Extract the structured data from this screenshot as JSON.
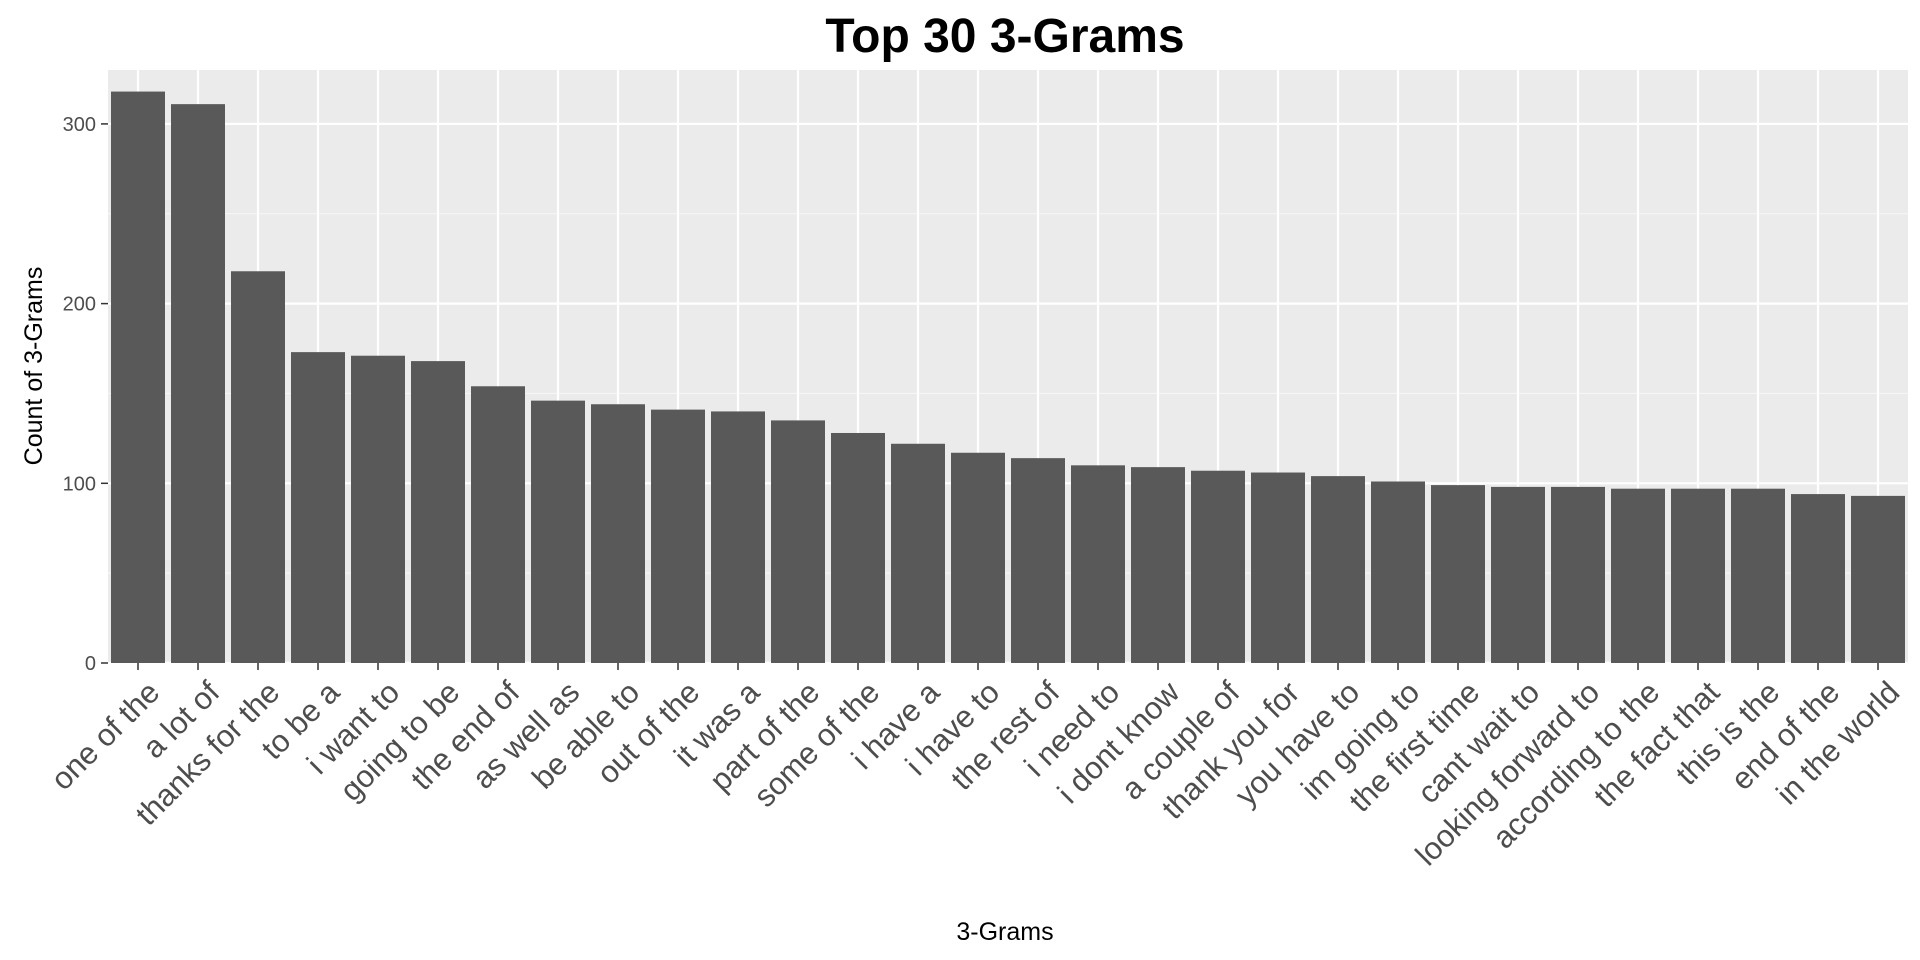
{
  "chart_data": {
    "type": "bar",
    "title": "Top 30 3-Grams",
    "xlabel": "3-Grams",
    "ylabel": "Count of 3-Grams",
    "ylim": [
      0,
      330
    ],
    "yticks": [
      0,
      100,
      200,
      300
    ],
    "grid": true,
    "legend": "none",
    "colors": {
      "bar": "#595959",
      "panel": "#ebebeb",
      "grid_major": "#ffffff",
      "grid_minor": "#f5f5f5",
      "tick": "#4d4d4d"
    },
    "categories": [
      "one of the",
      "a lot of",
      "thanks for the",
      "to be a",
      "i want to",
      "going to be",
      "the end of",
      "as well as",
      "be able to",
      "out of the",
      "it was a",
      "part of the",
      "some of the",
      "i have a",
      "i have to",
      "the rest of",
      "i need to",
      "i dont know",
      "a couple of",
      "thank you for",
      "you have to",
      "im going to",
      "the first time",
      "cant wait to",
      "looking forward to",
      "according to the",
      "the fact that",
      "this is the",
      "end of the",
      "in the world"
    ],
    "values": [
      318,
      311,
      218,
      173,
      171,
      168,
      154,
      146,
      144,
      141,
      140,
      135,
      128,
      122,
      117,
      114,
      110,
      109,
      107,
      106,
      104,
      101,
      99,
      98,
      98,
      97,
      97,
      97,
      94,
      93
    ]
  }
}
